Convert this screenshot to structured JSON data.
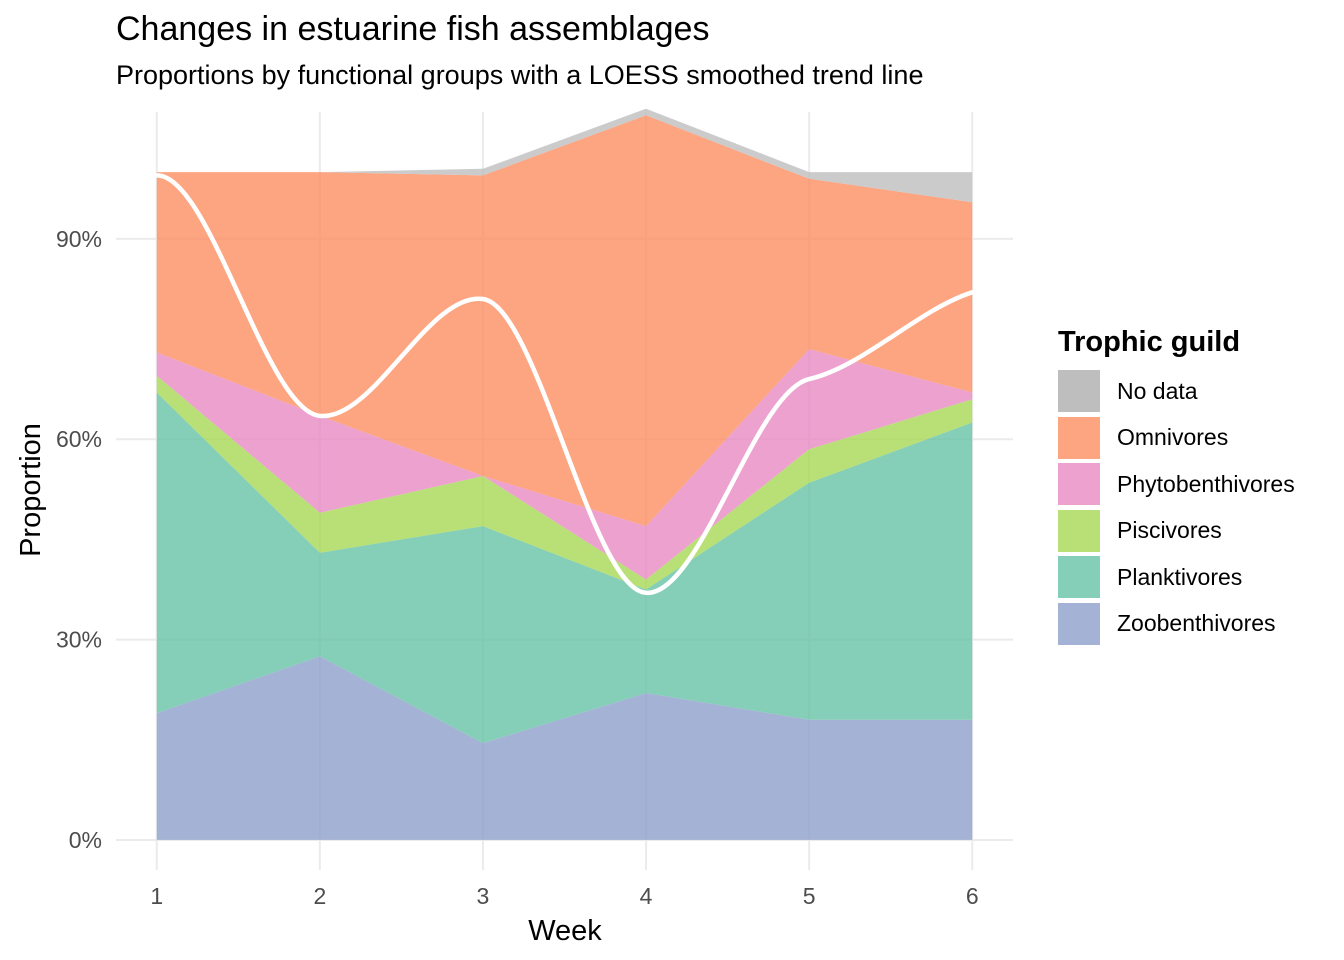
{
  "chart_data": {
    "type": "area",
    "title": "Changes in estuarine fish assemblages",
    "subtitle": "Proportions by functional groups with a LOESS smoothed trend line",
    "xlabel": "Week",
    "ylabel": "Proportion",
    "x": [
      1,
      2,
      3,
      4,
      5,
      6
    ],
    "xlim": [
      0.75,
      6.25
    ],
    "ylim": [
      -0.045,
      1.09
    ],
    "y_ticks": [
      {
        "value": 0.0,
        "label": "0%"
      },
      {
        "value": 0.3,
        "label": "30%"
      },
      {
        "value": 0.6,
        "label": "60%"
      },
      {
        "value": 0.9,
        "label": "90%"
      }
    ],
    "x_ticks": [
      {
        "value": 1,
        "label": "1"
      },
      {
        "value": 2,
        "label": "2"
      },
      {
        "value": 3,
        "label": "3"
      },
      {
        "value": 4,
        "label": "4"
      },
      {
        "value": 5,
        "label": "5"
      },
      {
        "value": 6,
        "label": "6"
      }
    ],
    "grid": true,
    "stacked": true,
    "legend": {
      "title": "Trophic guild",
      "placement": "right",
      "entries": [
        {
          "label": "No data",
          "color": "#BEBEBE"
        },
        {
          "label": "Omnivores",
          "color": "#FC8D62"
        },
        {
          "label": "Phytobenthivores",
          "color": "#E78AC3"
        },
        {
          "label": "Piscivores",
          "color": "#A6D854"
        },
        {
          "label": "Planktivores",
          "color": "#66C2A5"
        },
        {
          "label": "Zoobenthivores",
          "color": "#8DA0CB"
        }
      ]
    },
    "series": [
      {
        "name": "Zoobenthivores",
        "color": "#8DA0CB",
        "values": [
          0.19,
          0.275,
          0.145,
          0.22,
          0.18,
          0.18
        ]
      },
      {
        "name": "Planktivores",
        "color": "#66C2A5",
        "values": [
          0.48,
          0.155,
          0.325,
          0.155,
          0.355,
          0.445
        ]
      },
      {
        "name": "Piscivores",
        "color": "#A6D854",
        "values": [
          0.025,
          0.06,
          0.075,
          0.015,
          0.05,
          0.035
        ]
      },
      {
        "name": "Phytobenthivores",
        "color": "#E78AC3",
        "values": [
          0.035,
          0.145,
          0.0,
          0.08,
          0.15,
          0.01
        ]
      },
      {
        "name": "Omnivores",
        "color": "#FC8D62",
        "values": [
          0.27,
          0.365,
          0.45,
          0.615,
          0.255,
          0.285
        ]
      },
      {
        "name": "No data",
        "color": "#BEBEBE",
        "values": [
          0.0,
          0.0,
          0.01,
          0.01,
          0.01,
          0.045
        ]
      }
    ],
    "trend_line": {
      "method": "LOESS",
      "color": "#FFFFFF",
      "values": [
        0.995,
        0.635,
        0.81,
        0.37,
        0.69,
        0.82
      ]
    }
  }
}
